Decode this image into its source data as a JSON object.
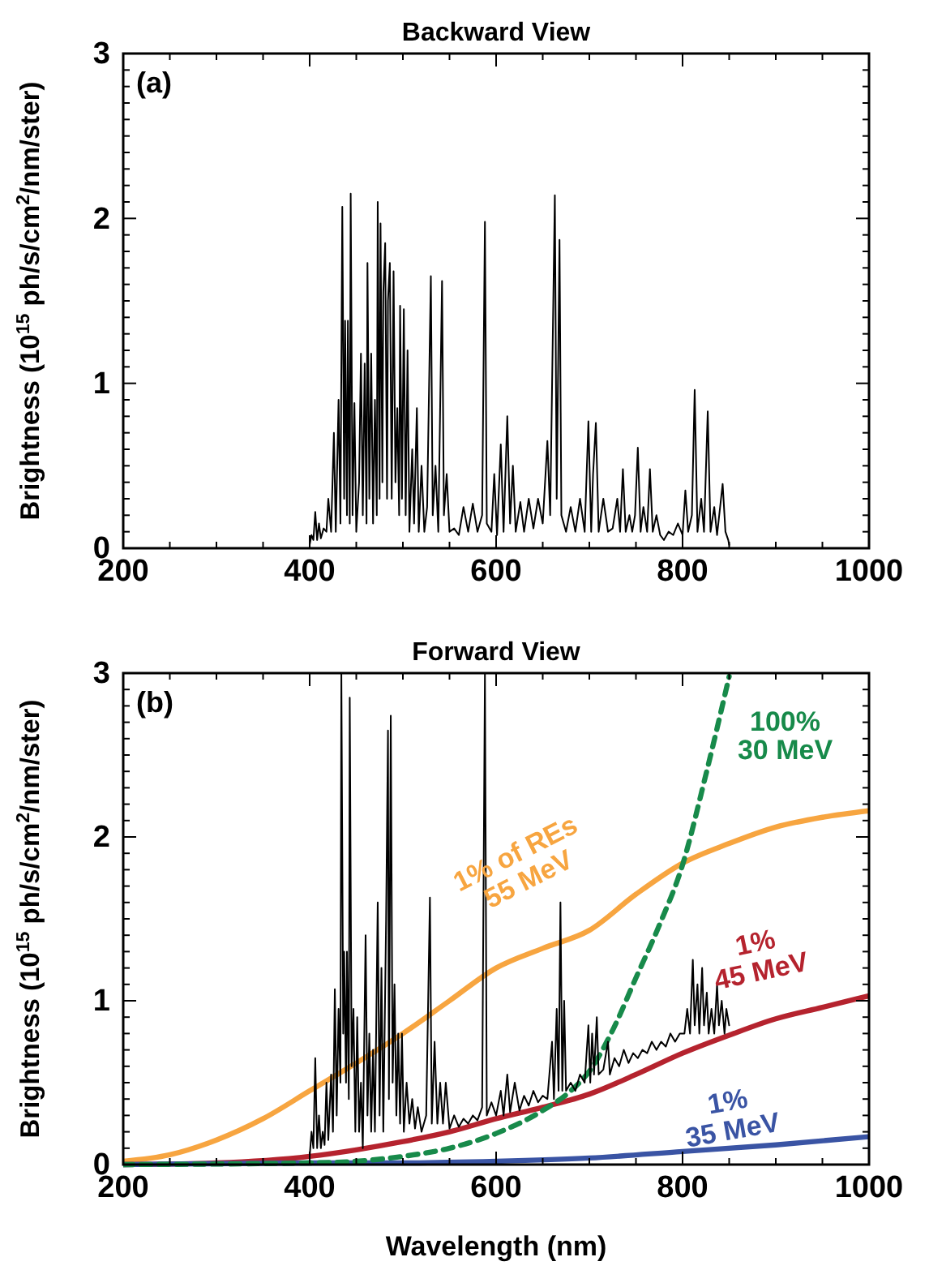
{
  "chart_data": [
    {
      "type": "line",
      "title": "Backward View",
      "ylabel": "Brightness (10$^{15}$ ph/s/cm$^{2}$/nm/ster)",
      "annotations": [
        "(a)"
      ],
      "xlim": [
        200,
        1000
      ],
      "ylim": [
        0,
        3
      ],
      "grid": false,
      "marker": "none",
      "xticks": [
        200,
        {
          "value": 250,
          "label": null
        },
        {
          "value": 300,
          "label": null
        },
        {
          "value": 350,
          "label": null
        },
        400,
        {
          "value": 450,
          "label": null
        },
        {
          "value": 500,
          "label": null
        },
        {
          "value": 550,
          "label": null
        },
        600,
        {
          "value": 650,
          "label": null
        },
        {
          "value": 700,
          "label": null
        },
        {
          "value": 750,
          "label": null
        },
        800,
        {
          "value": 850,
          "label": null
        },
        {
          "value": 900,
          "label": null
        },
        {
          "value": 950,
          "label": null
        },
        1000
      ],
      "yticks": [
        0,
        {
          "value": 0.1,
          "label": null
        },
        {
          "value": 0.2,
          "label": null
        },
        {
          "value": 0.3,
          "label": null
        },
        {
          "value": 0.4,
          "label": null
        },
        {
          "value": 0.5,
          "label": null
        },
        {
          "value": 0.6,
          "label": null
        },
        {
          "value": 0.7,
          "label": null
        },
        {
          "value": 0.8,
          "label": null
        },
        {
          "value": 0.9,
          "label": null
        },
        1,
        {
          "value": 1.1,
          "label": null
        },
        {
          "value": 1.2,
          "label": null
        },
        {
          "value": 1.3,
          "label": null
        },
        {
          "value": 1.4,
          "label": null
        },
        {
          "value": 1.5,
          "label": null
        },
        {
          "value": 1.6,
          "label": null
        },
        {
          "value": 1.7,
          "label": null
        },
        {
          "value": 1.8,
          "label": null
        },
        {
          "value": 1.9,
          "label": null
        },
        2,
        {
          "value": 2.1,
          "label": null
        },
        {
          "value": 2.2,
          "label": null
        },
        {
          "value": 2.3,
          "label": null
        },
        {
          "value": 2.4,
          "label": null
        },
        {
          "value": 2.5,
          "label": null
        },
        {
          "value": 2.6,
          "label": null
        },
        {
          "value": 2.7,
          "label": null
        },
        {
          "value": 2.8,
          "label": null
        },
        {
          "value": 2.9,
          "label": null
        },
        3
      ],
      "series": [
        {
          "color": "#000000",
          "line_style": "solid",
          "x": [
            400,
            402,
            404,
            406,
            408,
            410,
            412,
            415,
            418,
            420,
            423,
            426,
            428,
            431,
            433,
            435,
            437,
            438,
            440,
            441,
            443,
            444,
            446,
            448,
            450,
            453,
            455,
            457,
            459,
            461,
            462,
            464,
            466,
            468,
            470,
            472,
            473,
            475,
            476,
            478,
            479,
            481,
            483,
            484,
            486,
            488,
            490,
            492,
            494,
            496,
            497,
            499,
            501,
            503,
            505,
            507,
            510,
            512,
            515,
            517,
            520,
            523,
            526,
            530,
            532,
            535,
            538,
            542,
            544,
            547,
            550,
            555,
            560,
            565,
            570,
            575,
            580,
            585,
            588,
            590,
            595,
            598,
            601,
            605,
            608,
            612,
            615,
            618,
            621,
            626,
            630,
            635,
            640,
            645,
            650,
            655,
            658,
            663,
            665,
            668,
            670,
            675,
            680,
            685,
            690,
            695,
            699,
            702,
            704,
            707,
            710,
            715,
            720,
            725,
            730,
            733,
            736,
            739,
            743,
            746,
            749,
            752,
            755,
            758,
            762,
            765,
            768,
            772,
            776,
            780,
            785,
            790,
            795,
            800,
            803,
            806,
            810,
            813,
            816,
            820,
            823,
            827,
            830,
            834,
            837,
            843,
            846,
            849,
            850
          ],
          "values": [
            0.02,
            0.08,
            0.05,
            0.22,
            0.05,
            0.15,
            0.06,
            0.12,
            0.1,
            0.3,
            0.1,
            0.7,
            0.1,
            0.9,
            0.15,
            2.07,
            0.3,
            1.38,
            0.2,
            1.38,
            0.15,
            2.15,
            0.2,
            0.88,
            0.1,
            0.4,
            1.18,
            0.2,
            1.12,
            0.15,
            1.73,
            0.3,
            1.18,
            0.15,
            0.9,
            0.2,
            2.1,
            0.3,
            1.97,
            0.4,
            1.55,
            1.85,
            0.3,
            1.5,
            1.73,
            0.3,
            1.68,
            0.4,
            0.85,
            0.2,
            1.47,
            0.3,
            1.45,
            0.2,
            1.2,
            0.1,
            0.6,
            0.15,
            0.85,
            0.1,
            0.5,
            0.1,
            0.25,
            1.65,
            0.2,
            0.5,
            0.1,
            1.62,
            0.2,
            0.45,
            0.1,
            0.12,
            0.08,
            0.25,
            0.1,
            0.27,
            0.1,
            0.2,
            1.98,
            0.15,
            0.1,
            0.45,
            0.08,
            0.63,
            0.1,
            0.8,
            0.15,
            0.5,
            0.1,
            0.28,
            0.1,
            0.3,
            0.12,
            0.3,
            0.15,
            0.65,
            0.2,
            2.14,
            0.3,
            1.87,
            0.2,
            0.1,
            0.25,
            0.1,
            0.3,
            0.1,
            0.77,
            0.1,
            0.45,
            0.76,
            0.1,
            0.3,
            0.1,
            0.12,
            0.3,
            0.1,
            0.48,
            0.1,
            0.2,
            0.1,
            0.2,
            0.61,
            0.1,
            0.25,
            0.1,
            0.48,
            0.1,
            0.2,
            0.08,
            0.05,
            0.1,
            0.08,
            0.15,
            0.08,
            0.35,
            0.1,
            0.2,
            0.96,
            0.1,
            0.3,
            0.1,
            0.83,
            0.1,
            0.25,
            0.08,
            0.39,
            0.1,
            0.05,
            0.02
          ]
        }
      ]
    },
    {
      "type": "line",
      "title": "Forward View",
      "xlabel": "Wavelength (nm)",
      "ylabel": "Brightness (10$^{15}$ ph/s/cm$^{2}$/nm/ster)",
      "annotations": [
        "(b)"
      ],
      "xlim": [
        200,
        1000
      ],
      "ylim": [
        0,
        3
      ],
      "grid": false,
      "marker": "none",
      "xticks": [
        200,
        {
          "value": 250,
          "label": null
        },
        {
          "value": 300,
          "label": null
        },
        {
          "value": 350,
          "label": null
        },
        400,
        {
          "value": 450,
          "label": null
        },
        {
          "value": 500,
          "label": null
        },
        {
          "value": 550,
          "label": null
        },
        600,
        {
          "value": 650,
          "label": null
        },
        {
          "value": 700,
          "label": null
        },
        {
          "value": 750,
          "label": null
        },
        800,
        {
          "value": 850,
          "label": null
        },
        {
          "value": 900,
          "label": null
        },
        {
          "value": 950,
          "label": null
        },
        1000
      ],
      "yticks": [
        0,
        {
          "value": 0.1,
          "label": null
        },
        {
          "value": 0.2,
          "label": null
        },
        {
          "value": 0.3,
          "label": null
        },
        {
          "value": 0.4,
          "label": null
        },
        {
          "value": 0.5,
          "label": null
        },
        {
          "value": 0.6,
          "label": null
        },
        {
          "value": 0.7,
          "label": null
        },
        {
          "value": 0.8,
          "label": null
        },
        {
          "value": 0.9,
          "label": null
        },
        1,
        {
          "value": 1.1,
          "label": null
        },
        {
          "value": 1.2,
          "label": null
        },
        {
          "value": 1.3,
          "label": null
        },
        {
          "value": 1.4,
          "label": null
        },
        {
          "value": 1.5,
          "label": null
        },
        {
          "value": 1.6,
          "label": null
        },
        {
          "value": 1.7,
          "label": null
        },
        {
          "value": 1.8,
          "label": null
        },
        {
          "value": 1.9,
          "label": null
        },
        2,
        {
          "value": 2.1,
          "label": null
        },
        {
          "value": 2.2,
          "label": null
        },
        {
          "value": 2.3,
          "label": null
        },
        {
          "value": 2.4,
          "label": null
        },
        {
          "value": 2.5,
          "label": null
        },
        {
          "value": 2.6,
          "label": null
        },
        {
          "value": 2.7,
          "label": null
        },
        {
          "value": 2.8,
          "label": null
        },
        {
          "value": 2.9,
          "label": null
        },
        3
      ],
      "series": [
        {
          "name": "1% of REs\n55 MeV",
          "color": "#f7a540",
          "line_style": "solid",
          "x": [
            200,
            250,
            300,
            350,
            400,
            450,
            500,
            550,
            600,
            650,
            700,
            750,
            800,
            850,
            900,
            950,
            1000
          ],
          "values": [
            0.02,
            0.06,
            0.15,
            0.28,
            0.45,
            0.62,
            0.8,
            1.0,
            1.2,
            1.32,
            1.43,
            1.65,
            1.84,
            1.96,
            2.06,
            2.12,
            2.16
          ]
        },
        {
          "name": "1%\n45 MeV",
          "color": "#b5232e",
          "line_style": "solid",
          "x": [
            200,
            300,
            400,
            450,
            500,
            550,
            600,
            650,
            700,
            750,
            800,
            850,
            900,
            950,
            1000
          ],
          "values": [
            0,
            0.01,
            0.05,
            0.09,
            0.14,
            0.2,
            0.28,
            0.35,
            0.43,
            0.55,
            0.68,
            0.79,
            0.89,
            0.96,
            1.03
          ]
        },
        {
          "name": "1%\n35 MeV",
          "color": "#3a54a4",
          "line_style": "solid",
          "x": [
            200,
            400,
            500,
            600,
            700,
            800,
            900,
            1000
          ],
          "values": [
            0,
            0.01,
            0.01,
            0.02,
            0.04,
            0.08,
            0.12,
            0.17
          ]
        },
        {
          "name": "100%\n30 MeV",
          "color": "#178a4a",
          "line_style": "dashed",
          "x": [
            200,
            400,
            450,
            500,
            550,
            600,
            650,
            680,
            700,
            725,
            750,
            775,
            800,
            825,
            850
          ],
          "values": [
            0,
            0.01,
            0.02,
            0.05,
            0.1,
            0.19,
            0.33,
            0.45,
            0.57,
            0.82,
            1.14,
            1.46,
            1.83,
            2.38,
            2.98
          ]
        },
        {
          "color": "#000000",
          "line_style": "solid",
          "x": [
            400,
            402,
            404,
            406,
            408,
            410,
            412,
            414,
            416,
            418,
            420,
            423,
            425,
            427,
            429,
            431,
            433,
            434,
            436,
            437,
            439,
            440,
            442,
            443,
            445,
            447,
            449,
            451,
            453,
            455,
            457,
            460,
            462,
            464,
            466,
            468,
            470,
            473,
            475,
            477,
            479,
            482,
            484,
            485,
            487,
            489,
            491,
            493,
            495,
            497,
            499,
            501,
            504,
            507,
            510,
            513,
            516,
            520,
            525,
            529,
            531,
            534,
            537,
            540,
            543,
            546,
            550,
            555,
            560,
            565,
            570,
            575,
            580,
            585,
            588,
            590,
            595,
            600,
            605,
            608,
            612,
            615,
            620,
            625,
            630,
            635,
            640,
            645,
            650,
            655,
            660,
            662,
            665,
            667,
            669,
            671,
            673,
            675,
            680,
            685,
            690,
            695,
            699,
            701,
            703,
            705,
            708,
            710,
            715,
            720,
            722,
            727,
            732,
            737,
            742,
            747,
            752,
            757,
            762,
            767,
            772,
            777,
            782,
            787,
            792,
            797,
            802,
            805,
            808,
            811,
            813,
            816,
            818,
            821,
            823,
            826,
            828,
            831,
            834,
            837,
            839,
            842,
            845,
            847,
            850
          ],
          "values": [
            0.05,
            0.2,
            0.1,
            0.65,
            0.1,
            0.3,
            0.1,
            0.2,
            0.12,
            0.5,
            0.15,
            0.55,
            0.2,
            1.07,
            0.3,
            0.95,
            0.5,
            3,
            0.8,
            1.3,
            0.5,
            1.3,
            0.4,
            2.85,
            0.6,
            0.95,
            0.2,
            0.9,
            0.2,
            0.5,
            0.1,
            1.4,
            0.3,
            0.8,
            0.2,
            0.7,
            0.2,
            1.6,
            0.3,
            1.2,
            0.2,
            1.5,
            2.65,
            0.4,
            2.74,
            0.5,
            1.1,
            0.3,
            0.8,
            0.25,
            0.8,
            0.2,
            0.5,
            0.25,
            0.4,
            0.22,
            0.35,
            0.2,
            0.3,
            1.63,
            0.25,
            0.75,
            0.25,
            0.5,
            0.25,
            0.5,
            0.22,
            0.3,
            0.23,
            0.28,
            0.25,
            0.3,
            0.27,
            0.35,
            3,
            0.3,
            0.38,
            0.3,
            0.45,
            0.3,
            0.55,
            0.32,
            0.5,
            0.33,
            0.42,
            0.36,
            0.45,
            0.38,
            0.42,
            0.4,
            0.75,
            0.4,
            0.95,
            0.45,
            1.6,
            0.45,
            1.0,
            0.45,
            0.5,
            0.45,
            0.55,
            0.5,
            0.85,
            0.5,
            0.8,
            0.55,
            0.9,
            0.55,
            0.58,
            0.75,
            0.55,
            0.65,
            0.6,
            0.7,
            0.62,
            0.68,
            0.65,
            0.7,
            0.68,
            0.75,
            0.7,
            0.75,
            0.72,
            0.8,
            0.75,
            0.8,
            0.8,
            0.95,
            0.8,
            1.25,
            0.85,
            1.1,
            0.8,
            1.2,
            0.85,
            1.05,
            0.8,
            0.95,
            0.8,
            1.1,
            0.85,
            1.0,
            0.8,
            0.95,
            0.85
          ]
        }
      ]
    }
  ]
}
